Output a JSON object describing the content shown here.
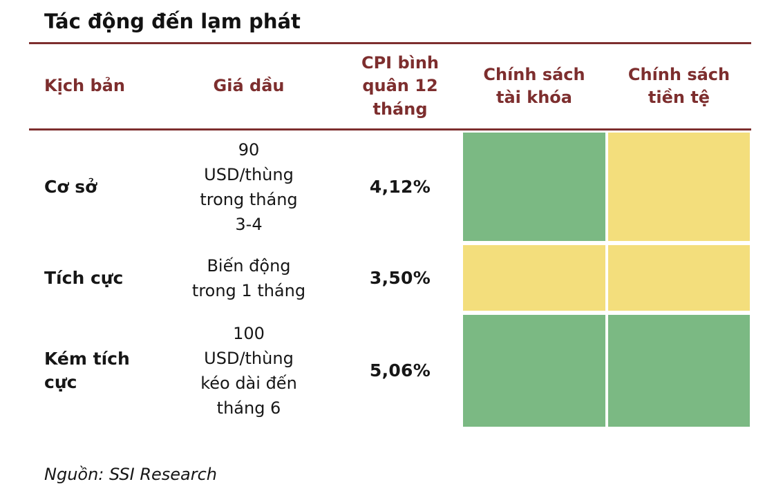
{
  "title": "Tác động đến lạm phát",
  "source": "Nguồn: SSI Research",
  "colors": {
    "green": "#7bb983",
    "yellow": "#f3de7c",
    "maroon": "#7d2e2e"
  },
  "headers": {
    "scenario": "Kịch bản",
    "oil_price": "Giá dầu",
    "cpi": "CPI bình\nquân 12\ntháng",
    "fiscal": "Chính sách\ntài khóa",
    "monetary": "Chính sách\ntiền tệ"
  },
  "rows": [
    {
      "scenario": "Cơ sở",
      "oil_price": "90\nUSD/thùng\ntrong tháng\n3-4",
      "cpi": "4,12%",
      "fiscal": "green",
      "monetary": "yellow"
    },
    {
      "scenario": "Tích cực",
      "oil_price": "Biến động\ntrong 1 tháng",
      "cpi": "3,50%",
      "fiscal": "yellow",
      "monetary": "yellow"
    },
    {
      "scenario": "Kém tích\ncực",
      "oil_price": "100\nUSD/thùng\nkéo dài đến\ntháng 6",
      "cpi": "5,06%",
      "fiscal": "green",
      "monetary": "green"
    }
  ],
  "chart_data": {
    "type": "table",
    "title": "Tác động đến lạm phát",
    "columns": [
      "Kịch bản",
      "Giá dầu",
      "CPI bình quân 12 tháng",
      "Chính sách tài khóa",
      "Chính sách tiền tệ"
    ],
    "rows": [
      [
        "Cơ sở",
        "90 USD/thùng trong tháng 3-4",
        "4,12%",
        "green",
        "yellow"
      ],
      [
        "Tích cực",
        "Biến động trong 1 tháng",
        "3,50%",
        "yellow",
        "yellow"
      ],
      [
        "Kém tích cực",
        "100 USD/thùng kéo dài đến tháng 6",
        "5,06%",
        "green",
        "green"
      ]
    ],
    "cpi_values_pct": [
      4.12,
      3.5,
      5.06
    ],
    "cell_color_legend": {
      "green": "#7bb983",
      "yellow": "#f3de7c"
    },
    "source": "Nguồn: SSI Research"
  }
}
